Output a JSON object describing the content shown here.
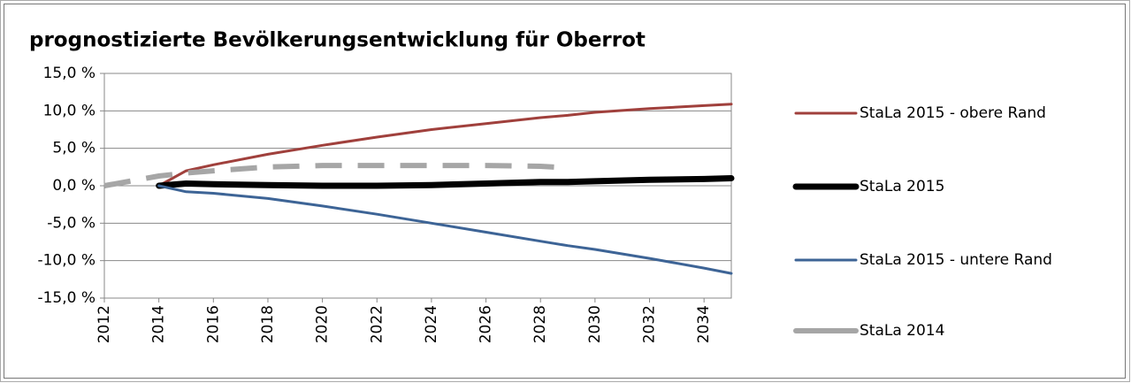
{
  "chart_data": {
    "type": "line",
    "title": "prognostizierte Bevölkerungsentwicklung für Oberrot",
    "x": [
      2012,
      2014,
      2015,
      2016,
      2018,
      2020,
      2022,
      2024,
      2026,
      2028,
      2029,
      2030,
      2032,
      2034,
      2035
    ],
    "xlim": [
      2012,
      2035
    ],
    "xticks": [
      2012,
      2014,
      2016,
      2018,
      2020,
      2022,
      2024,
      2026,
      2028,
      2030,
      2032,
      2034
    ],
    "ylim": [
      -15,
      15
    ],
    "yticks": [
      {
        "value": -15,
        "label": "-15,0 %"
      },
      {
        "value": -10,
        "label": "-10,0 %"
      },
      {
        "value": -5,
        "label": "-5,0 %"
      },
      {
        "value": 0,
        "label": "0,0 %"
      },
      {
        "value": 5,
        "label": "5,0 %"
      },
      {
        "value": 10,
        "label": "10,0 %"
      },
      {
        "value": 15,
        "label": "15,0 %"
      }
    ],
    "grid": true,
    "legend": "right",
    "series": [
      {
        "name": "StaLa 2015 - obere Rand",
        "color": "#a0403c",
        "values": [
          null,
          0,
          2.0,
          2.8,
          4.2,
          5.4,
          6.5,
          7.5,
          8.3,
          9.1,
          9.4,
          9.8,
          10.3,
          10.7,
          10.9
        ]
      },
      {
        "name": "StaLa 2015",
        "color": "#000000",
        "values": [
          null,
          0,
          0.3,
          0.2,
          0.1,
          0.0,
          0.0,
          0.1,
          0.3,
          0.5,
          0.5,
          0.6,
          0.8,
          0.9,
          1.0
        ]
      },
      {
        "name": "StaLa 2015 - untere Rand",
        "color": "#3d6496",
        "values": [
          null,
          0,
          -0.8,
          -1.0,
          -1.7,
          -2.7,
          -3.8,
          -5.0,
          -6.2,
          -7.4,
          -8.0,
          -8.5,
          -9.7,
          -11.0,
          -11.7
        ]
      },
      {
        "name": "StaLa 2014",
        "color": "#a6a6a6",
        "dashed": true,
        "values": [
          0,
          1.3,
          1.7,
          2.0,
          2.5,
          2.7,
          2.7,
          2.7,
          2.7,
          2.6,
          2.4,
          null,
          null,
          null,
          null
        ]
      }
    ]
  }
}
